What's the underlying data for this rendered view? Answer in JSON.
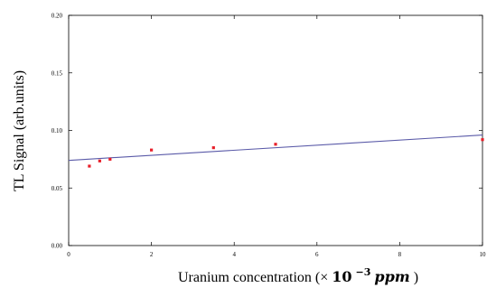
{
  "chart_data": {
    "type": "scatter",
    "xlabel": "Uranium concentration",
    "xlabel_unit": {
      "prefix": "(× ",
      "base": "10",
      "exponent": "−3",
      "unit": "ppm",
      "suffix": ")"
    },
    "ylabel": "TL Signal (arb.units)",
    "xlim": [
      0,
      10
    ],
    "ylim": [
      0,
      0.2
    ],
    "x_ticks": [
      0,
      2,
      4,
      6,
      8,
      10
    ],
    "x_tick_labels": [
      "0",
      "2",
      "4",
      "6",
      "8",
      "10"
    ],
    "y_ticks": [
      0,
      0.05,
      0.1,
      0.15,
      0.2
    ],
    "y_tick_labels": [
      "0.00",
      "0.05",
      "0.10",
      "0.15",
      "0.20"
    ],
    "grid": false,
    "series": [
      {
        "points": [
          {
            "x": 0.5,
            "y": 0.069
          },
          {
            "x": 0.75,
            "y": 0.0735
          },
          {
            "x": 1.0,
            "y": 0.075
          },
          {
            "x": 2.0,
            "y": 0.083
          },
          {
            "x": 3.5,
            "y": 0.085
          },
          {
            "x": 5.0,
            "y": 0.088
          },
          {
            "x": 10.0,
            "y": 0.092
          }
        ],
        "color": "#e8202a"
      }
    ],
    "fit_line": {
      "x": [
        0,
        10
      ],
      "y": [
        0.074,
        0.096
      ],
      "color": "#5a5aa8"
    }
  }
}
